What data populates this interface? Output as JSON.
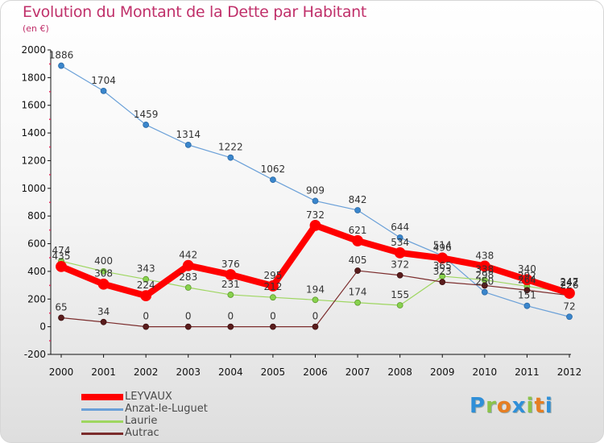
{
  "title": "Evolution du Montant de la Dette par Habitant",
  "subtitle": "(en €)",
  "colors": {
    "title": "#c0306a",
    "LEYVAUX": "#ff0000",
    "Anzat-le-Luguet": "#5b9bd5",
    "Laurie": "#92d050",
    "Autrac": "#7b2c2c"
  },
  "legend": [
    {
      "name": "LEYVAUX",
      "color": "#ff0000"
    },
    {
      "name": "Anzat-le-Luguet",
      "color": "#6aa0d8"
    },
    {
      "name": "Laurie",
      "color": "#9ed660"
    },
    {
      "name": "Autrac",
      "color": "#7b2c2c"
    }
  ],
  "logo": {
    "text": "Proxiti",
    "letters": [
      {
        "ch": "P",
        "color": "#2f8fd8"
      },
      {
        "ch": "r",
        "color": "#8bc34a"
      },
      {
        "ch": "o",
        "color": "#e67e22"
      },
      {
        "ch": "x",
        "color": "#2f8fd8"
      },
      {
        "ch": "i",
        "color": "#8bc34a"
      },
      {
        "ch": "t",
        "color": "#e67e22"
      },
      {
        "ch": "i",
        "color": "#2f8fd8"
      }
    ]
  },
  "chart_data": {
    "type": "line",
    "title": "Evolution du Montant de la Dette par Habitant",
    "subtitle": "(en €)",
    "xlabel": "",
    "ylabel": "",
    "x": [
      "2000",
      "2001",
      "2002",
      "2003",
      "2004",
      "2005",
      "2006",
      "2007",
      "2008",
      "2009",
      "2010",
      "2011",
      "2012"
    ],
    "ylim": [
      -200,
      2000
    ],
    "yticks": [
      -200,
      0,
      200,
      400,
      600,
      800,
      1000,
      1200,
      1400,
      1600,
      1800,
      2000
    ],
    "grid": false,
    "legend_position": "bottom-left",
    "series": [
      {
        "name": "Anzat-le-Luguet",
        "color": "#4f90cc",
        "values": [
          1886,
          1704,
          1459,
          1314,
          1222,
          1062,
          909,
          842,
          644,
          514,
          250,
          151,
          72
        ]
      },
      {
        "name": "Laurie",
        "color": "#92d050",
        "values": [
          474,
          400,
          343,
          283,
          231,
          212,
          194,
          174,
          155,
          365,
          338,
          292,
          247
        ]
      },
      {
        "name": "Autrac",
        "color": "#6e2a2a",
        "values": [
          65,
          34,
          0,
          0,
          0,
          0,
          0,
          405,
          372,
          323,
          298,
          264,
          226
        ]
      },
      {
        "name": "LEYVAUX",
        "color": "#ff0000",
        "values": [
          435,
          308,
          224,
          442,
          376,
          295,
          732,
          621,
          534,
          496,
          438,
          340,
          242
        ]
      }
    ]
  }
}
